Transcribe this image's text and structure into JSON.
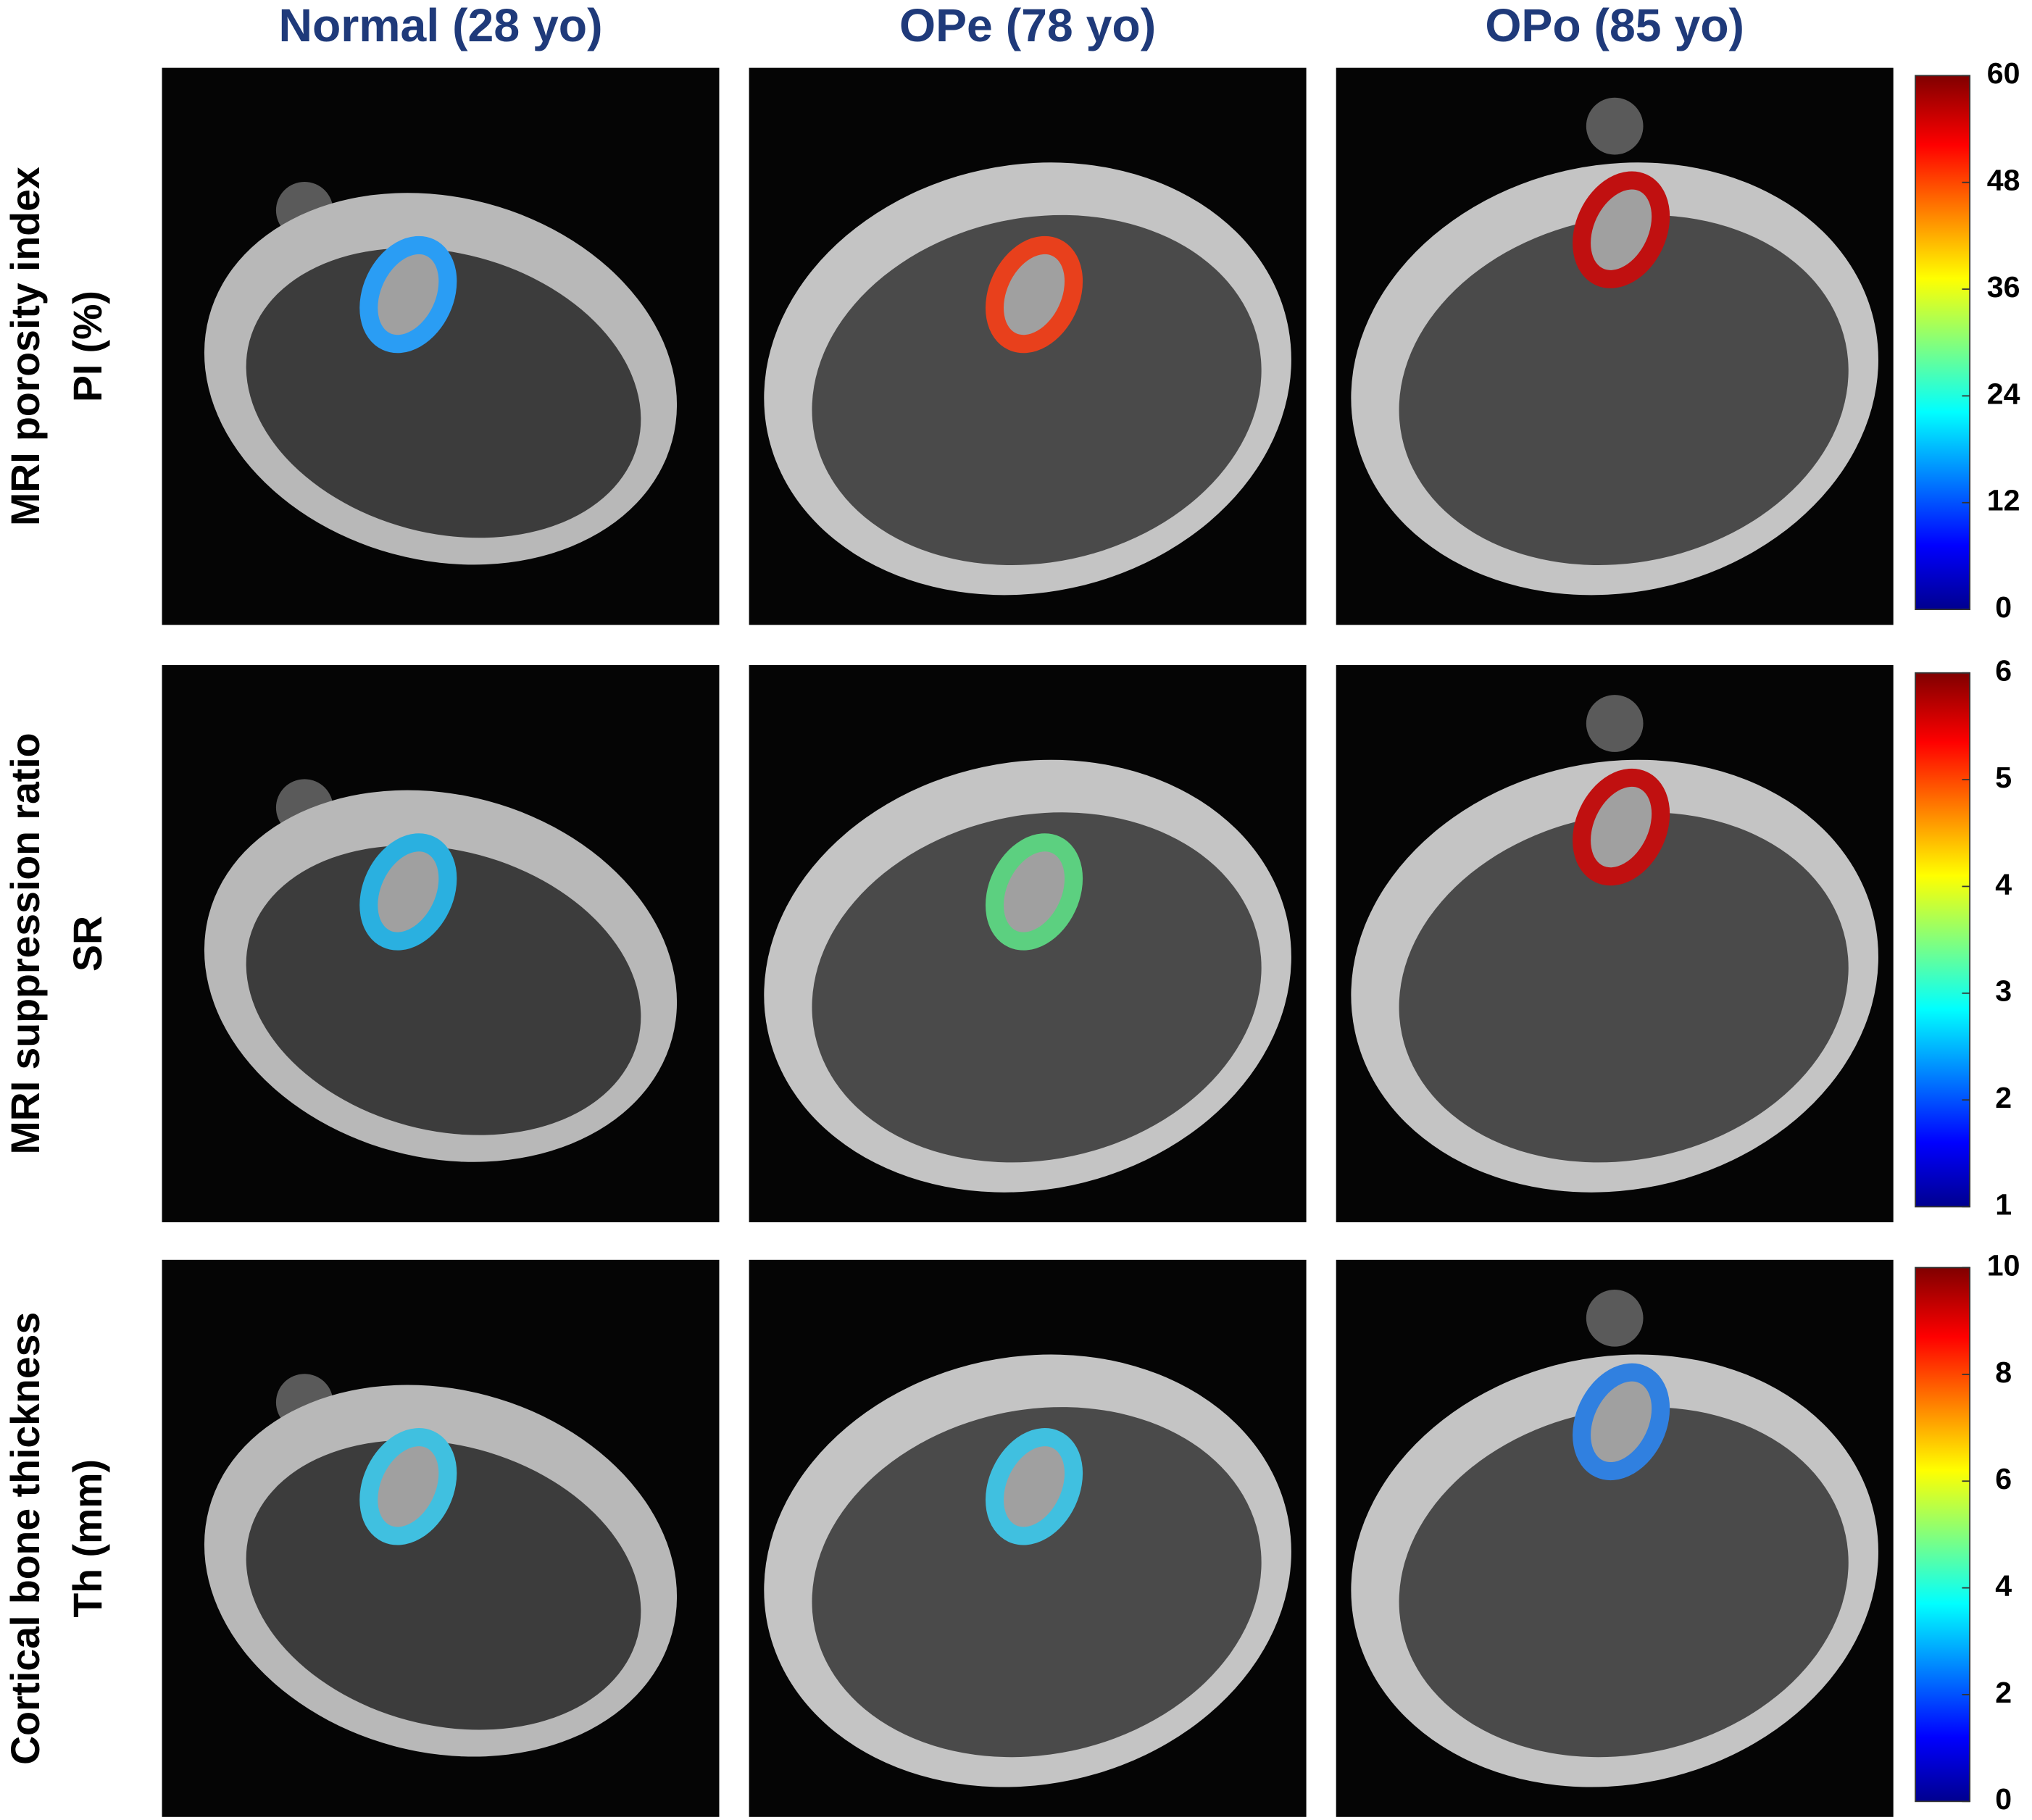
{
  "columns": [
    "Normal (28 yo)",
    "OPe (78 yo)",
    "OPo (85 yo)"
  ],
  "rows": [
    {
      "label": [
        "MRI porosity index",
        "PI (%)"
      ],
      "colorbar_ticks": [
        0,
        12,
        24,
        36,
        48,
        60
      ]
    },
    {
      "label": [
        "MRI suppression ratio",
        "SR"
      ],
      "colorbar_ticks": [
        1,
        2,
        3,
        4,
        5,
        6
      ]
    },
    {
      "label": [
        "Cortical bone thickness",
        "Th (mm)"
      ],
      "colorbar_ticks": [
        0,
        2,
        4,
        6,
        8,
        10
      ]
    }
  ]
}
